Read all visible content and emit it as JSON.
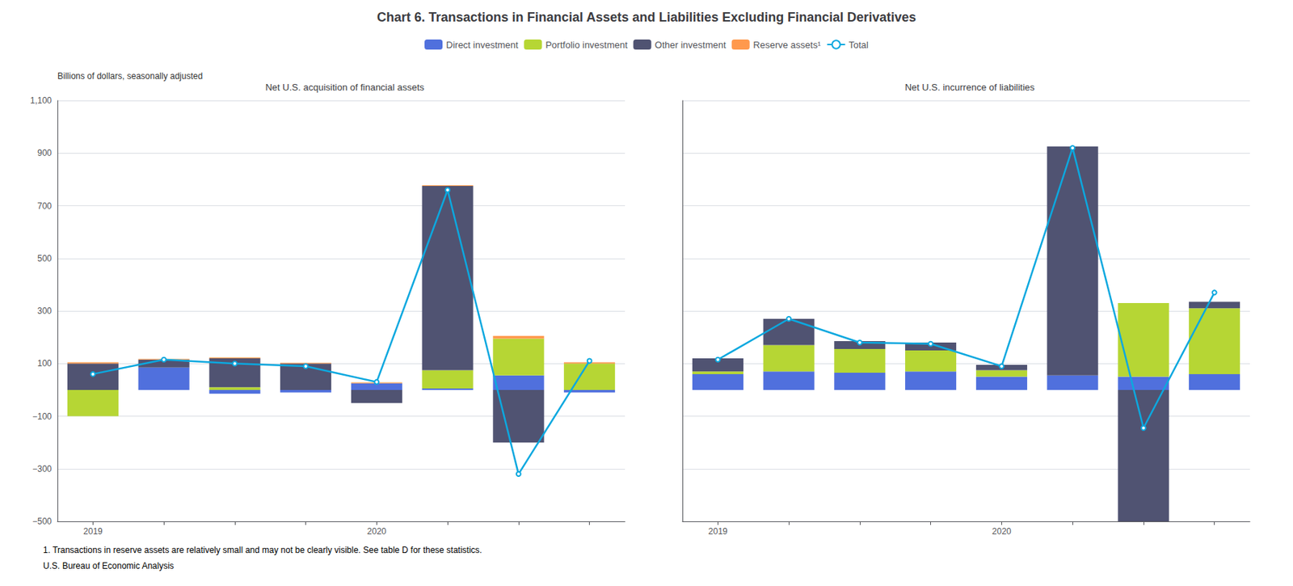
{
  "title": "Chart 6. Transactions in Financial Assets and Liabilities Excluding Financial Derivatives",
  "annotations": [
    "1. Transactions in reserve assets are relatively small and may not be clearly visible. See table D for these statistics.",
    "U.S. Bureau of Economic Analysis"
  ],
  "chart_data": [
    {
      "type": "bar",
      "stacked": true,
      "grid": true,
      "legend": "top",
      "subtitle": "Net U.S. acquisition of financial assets",
      "ylabel": "Billions of dollars, seasonally adjusted",
      "categories": [
        "2019",
        null,
        null,
        null,
        "2020",
        null,
        null,
        null
      ],
      "ylim": [
        -500,
        1100
      ],
      "yticks": [
        {
          "value": -500,
          "label": "−500"
        },
        {
          "value": -300,
          "label": "−300"
        },
        {
          "value": -100,
          "label": "−100"
        },
        100,
        300,
        500,
        700,
        900,
        {
          "value": 1100,
          "label": "1,100"
        }
      ],
      "series": [
        {
          "name": "Direct investment",
          "values": [
            0,
            85,
            -15,
            -10,
            25,
            5,
            55,
            -10
          ]
        },
        {
          "name": "Portfolio investment",
          "values": [
            -100,
            0,
            10,
            0,
            0,
            70,
            140,
            100
          ]
        },
        {
          "name": "Other investment",
          "values": [
            100,
            30,
            110,
            100,
            -50,
            700,
            -200,
            0
          ]
        },
        {
          "name": "Reserve assets¹",
          "values": [
            5,
            3,
            3,
            3,
            3,
            3,
            10,
            5
          ]
        },
        {
          "name": "Total",
          "type": "line",
          "values": [
            60,
            115,
            100,
            90,
            30,
            760,
            -320,
            110
          ]
        }
      ]
    },
    {
      "type": "bar",
      "stacked": true,
      "grid": true,
      "tick_labels": "x",
      "subtitle": "Net U.S. incurrence of liabilities",
      "categories": [
        "2019",
        null,
        null,
        null,
        "2020",
        null,
        null,
        null
      ],
      "ylim": [
        -500,
        1100
      ],
      "yticks": [
        -500,
        -300,
        -100,
        100,
        300,
        500,
        700,
        900,
        1100
      ],
      "series": [
        {
          "name": "Direct investment",
          "values": [
            60,
            70,
            65,
            70,
            50,
            55,
            50,
            60
          ]
        },
        {
          "name": "Portfolio investment",
          "values": [
            10,
            100,
            90,
            80,
            25,
            0,
            280,
            250
          ]
        },
        {
          "name": "Other investment",
          "values": [
            50,
            100,
            30,
            30,
            20,
            870,
            -500,
            25
          ]
        },
        {
          "name": "Reserve assets¹",
          "values": [
            0,
            0,
            0,
            0,
            0,
            0,
            0,
            0
          ]
        },
        {
          "name": "Total",
          "type": "line",
          "values": [
            115,
            270,
            180,
            175,
            90,
            920,
            -145,
            370
          ]
        }
      ]
    }
  ]
}
